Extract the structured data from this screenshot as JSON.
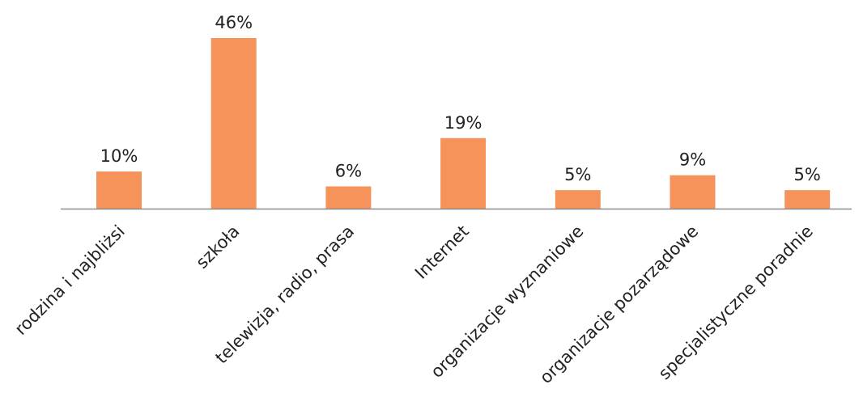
{
  "chart_data": {
    "type": "bar",
    "categories": [
      "rodzina i najbliżsi",
      "szkoła",
      "telewizja, radio, prasa",
      "Internet",
      "organizacje wyznaniowe",
      "organizacje pozarządowe",
      "specjalistyczne poradnie"
    ],
    "values": [
      10,
      46,
      6,
      19,
      5,
      9,
      5
    ],
    "data_labels": [
      "10%",
      "46%",
      "6%",
      "19%",
      "5%",
      "9%",
      "5%"
    ],
    "unit": "%",
    "title": "",
    "xlabel": "",
    "ylabel": "",
    "ylim": [
      0,
      46
    ],
    "grid": false,
    "legend": "none",
    "colors": {
      "bar": "#f5935a",
      "axis": "#8c8c8c",
      "text": "#222222"
    }
  }
}
